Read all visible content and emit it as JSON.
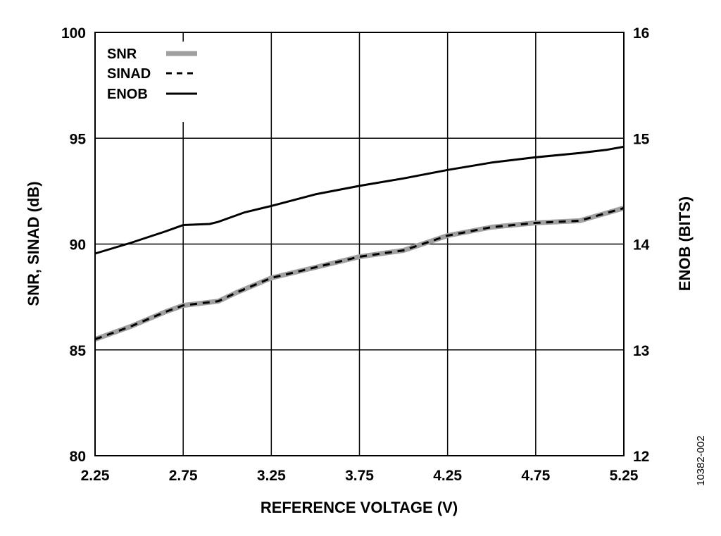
{
  "figure_id": "10382-002",
  "chart_data": {
    "type": "line",
    "xlabel": "REFERENCE VOLTAGE (V)",
    "ylabel": "SNR, SINAD (dB)",
    "y2label": "ENOB (BITS)",
    "xlim": [
      2.25,
      5.25
    ],
    "ylim": [
      80,
      100
    ],
    "y2lim": [
      12,
      16
    ],
    "x_ticks": [
      "2.25",
      "2.75",
      "3.25",
      "3.75",
      "4.25",
      "4.75",
      "5.25"
    ],
    "y_ticks": [
      "80",
      "85",
      "90",
      "95",
      "100"
    ],
    "y2_ticks": [
      "12",
      "13",
      "14",
      "15",
      "16"
    ],
    "grid": true,
    "legend_position": "top-left",
    "series": [
      {
        "name": "SNR",
        "axis": "left",
        "color": "#a0a0a0",
        "style": "thick-solid",
        "x": [
          2.25,
          2.45,
          2.65,
          2.75,
          2.85,
          2.95,
          3.05,
          3.25,
          3.5,
          3.75,
          4.0,
          4.25,
          4.5,
          4.75,
          5.0,
          5.25
        ],
        "y": [
          85.5,
          86.1,
          86.8,
          87.1,
          87.2,
          87.3,
          87.7,
          88.4,
          88.9,
          89.4,
          89.7,
          90.4,
          90.8,
          91.0,
          91.1,
          91.7
        ]
      },
      {
        "name": "SINAD",
        "axis": "left",
        "color": "#000000",
        "style": "dashed",
        "x": [
          2.25,
          2.45,
          2.65,
          2.75,
          2.85,
          2.95,
          3.05,
          3.25,
          3.5,
          3.75,
          4.0,
          4.25,
          4.5,
          4.75,
          5.0,
          5.25
        ],
        "y": [
          85.5,
          86.1,
          86.8,
          87.1,
          87.2,
          87.3,
          87.7,
          88.4,
          88.9,
          89.4,
          89.7,
          90.4,
          90.8,
          91.0,
          91.1,
          91.7
        ]
      },
      {
        "name": "ENOB",
        "axis": "right",
        "color": "#000000",
        "style": "solid",
        "x": [
          2.25,
          2.45,
          2.65,
          2.75,
          2.9,
          2.95,
          3.1,
          3.25,
          3.5,
          3.75,
          4.0,
          4.25,
          4.5,
          4.75,
          5.0,
          5.15,
          5.25
        ],
        "y": [
          13.91,
          14.01,
          14.12,
          14.18,
          14.19,
          14.21,
          14.3,
          14.36,
          14.47,
          14.55,
          14.62,
          14.7,
          14.77,
          14.82,
          14.86,
          14.89,
          14.92
        ]
      }
    ]
  }
}
